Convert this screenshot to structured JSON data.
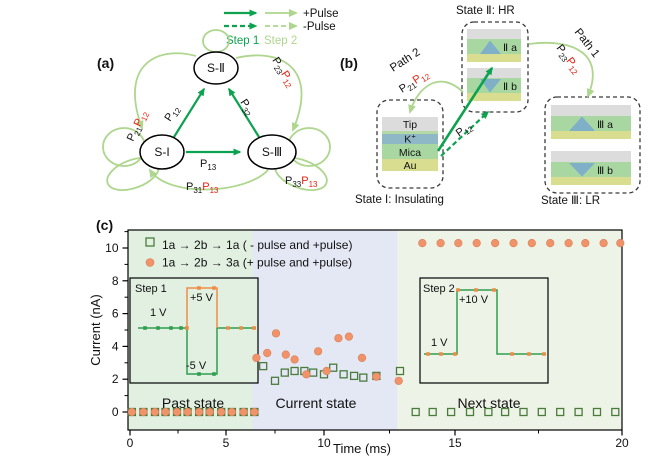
{
  "colors": {
    "dark_green": "#0ca24f",
    "light_green": "#aed68e",
    "orange": "#f0936a",
    "square_green": "#4a7b3d",
    "red": "#e8210f",
    "region_past": "#e2f0e1",
    "region_current": "#e4e8f4",
    "region_next": "#edf4e7",
    "layer_gray": "#dcdcdc",
    "layer_green": "#a9d7a2",
    "layer_yellow": "#d9dd90",
    "layer_blue": "#8fb8c6",
    "triangle_blue": "#7fb0c8",
    "inset_line_green": "#2f9e4f",
    "inset_line_orange": "#f08c45"
  },
  "top_legend": {
    "plus": "+Pulse",
    "minus": "-Pulse",
    "step1": "Step 1",
    "step2": "Step 2"
  },
  "panel_a": {
    "label": "(a)",
    "nodes": {
      "s2": "S-Ⅱ",
      "s1": "S-I",
      "s3": "S-Ⅲ"
    },
    "edges": {
      "p12": {
        "p": "P",
        "s": "12"
      },
      "p32": {
        "p": "P",
        "s": "32"
      },
      "p13": {
        "p": "P",
        "s": "13"
      },
      "p21p12": {
        "p1": "P",
        "s1": "21",
        "p2": "P",
        "s2": "12"
      },
      "p23p12": {
        "p1": "P",
        "s1": "23",
        "p2": "P",
        "s2": "12"
      },
      "p31p13": {
        "p1": "P",
        "s1": "31",
        "p2": "P",
        "s2": "13"
      },
      "p33p13": {
        "p1": "P",
        "s1": "33",
        "p2": "P",
        "s2": "13"
      }
    }
  },
  "panel_b": {
    "label": "(b)",
    "state2_title": "State Ⅱ: HR",
    "state1_title": "State I: Insulating",
    "state3_title": "State Ⅲ: LR",
    "path1": "Path 1",
    "path2": "Path 2",
    "p21p12": {
      "p1": "P",
      "s1": "21",
      "p2": "P",
      "s2": "12"
    },
    "p23p12": {
      "p1": "P",
      "s1": "23",
      "p2": "P",
      "s2": "12"
    },
    "p12": {
      "p": "P",
      "s": "12"
    },
    "stacks": {
      "iia": "Ⅱ a",
      "iib": "Ⅱ b",
      "iiia": "Ⅲ a",
      "iiib": "Ⅲ b"
    },
    "layers": {
      "tip": "Tip",
      "k": "K",
      "k_sup": "+",
      "mica": "Mica",
      "au": "Au"
    }
  },
  "chart_data": {
    "type": "scatter",
    "panel_label": "(c)",
    "xlabel": "Time (ms)",
    "ylabel": "Current (nA)",
    "xlim": [
      0,
      20
    ],
    "ylim": [
      -1.1,
      11.1
    ],
    "x_ticks": [
      0,
      5,
      10,
      15,
      20
    ],
    "x_minor_ticks": [
      2.5,
      7.5,
      12.5,
      17.5
    ],
    "y_ticks": [
      0,
      2,
      4,
      6,
      8,
      10
    ],
    "y_minor_ticks": [
      1,
      3,
      5,
      7,
      9,
      11
    ],
    "grid": false,
    "legend_position": "top-left-inside",
    "regions": [
      {
        "label": "Past state",
        "x0": -0.1,
        "x1": 6.35,
        "color": "#e2f0e1"
      },
      {
        "label": "Current state",
        "x0": 6.35,
        "x1": 12.8,
        "color": "#e4e8f4"
      },
      {
        "label": "Next state",
        "x0": 12.8,
        "x1": 20,
        "color": "#edf4e7"
      }
    ],
    "series": [
      {
        "name": "1a → 2b → 1a ( - pulse and +pulse)",
        "marker": "open-square",
        "color": "#4a7b3d",
        "points": [
          [
            0.1,
            0
          ],
          [
            0.7,
            0
          ],
          [
            1.3,
            0
          ],
          [
            1.85,
            0
          ],
          [
            2.45,
            0
          ],
          [
            3.0,
            0
          ],
          [
            3.6,
            0
          ],
          [
            4.15,
            0
          ],
          [
            4.75,
            0
          ],
          [
            5.3,
            0
          ],
          [
            5.9,
            0
          ],
          [
            6.45,
            0
          ],
          [
            6.9,
            2.8
          ],
          [
            7.5,
            1.9
          ],
          [
            8.0,
            2.4
          ],
          [
            8.5,
            2.5
          ],
          [
            9.0,
            2.5
          ],
          [
            9.45,
            2.4
          ],
          [
            10.0,
            2.3
          ],
          [
            10.35,
            2.7
          ],
          [
            10.75,
            2.3
          ],
          [
            11.15,
            2.2
          ],
          [
            11.5,
            2.1
          ],
          [
            12.0,
            2.2
          ],
          [
            12.9,
            2.5
          ],
          [
            13.5,
            0
          ],
          [
            14.15,
            0
          ],
          [
            14.85,
            0
          ],
          [
            15.45,
            0
          ],
          [
            16.0,
            0
          ],
          [
            16.5,
            0
          ],
          [
            17.05,
            0
          ],
          [
            17.6,
            0
          ],
          [
            18.15,
            0
          ],
          [
            18.7,
            0
          ],
          [
            19.25,
            0
          ],
          [
            19.8,
            0
          ]
        ]
      },
      {
        "name": "1a → 2b → 3a (+ pulse and +pulse)",
        "marker": "filled-circle",
        "color": "#f0936a",
        "points": [
          [
            0.1,
            0
          ],
          [
            0.7,
            0
          ],
          [
            1.3,
            0
          ],
          [
            1.85,
            0
          ],
          [
            2.45,
            0
          ],
          [
            3.0,
            0
          ],
          [
            3.6,
            0
          ],
          [
            4.15,
            0
          ],
          [
            4.75,
            0
          ],
          [
            5.3,
            0
          ],
          [
            5.9,
            0
          ],
          [
            6.45,
            0
          ],
          [
            6.55,
            3.3
          ],
          [
            7.1,
            3.6
          ],
          [
            7.55,
            4.8
          ],
          [
            8.05,
            3.5
          ],
          [
            8.5,
            3.2
          ],
          [
            9.1,
            2.3
          ],
          [
            9.7,
            3.7
          ],
          [
            10.1,
            2.5
          ],
          [
            10.55,
            4.5
          ],
          [
            10.95,
            4.6
          ],
          [
            11.45,
            3.3
          ],
          [
            12.0,
            2.15
          ],
          [
            12.85,
            1.9
          ],
          [
            13.75,
            10.3
          ],
          [
            14.45,
            10.3
          ],
          [
            15.1,
            10.3
          ],
          [
            15.65,
            10.3
          ],
          [
            16.2,
            10.3
          ],
          [
            16.75,
            10.3
          ],
          [
            17.3,
            10.3
          ],
          [
            17.85,
            10.3
          ],
          [
            18.4,
            10.3
          ],
          [
            18.9,
            10.3
          ],
          [
            19.45,
            10.3
          ],
          [
            19.95,
            10.3
          ]
        ]
      }
    ],
    "insets": [
      {
        "title": "Step 1",
        "baseline": "1 V",
        "high": "+5 V",
        "low": "-5 V"
      },
      {
        "title": "Step 2",
        "baseline": "1 V",
        "high": "+10 V"
      }
    ]
  }
}
